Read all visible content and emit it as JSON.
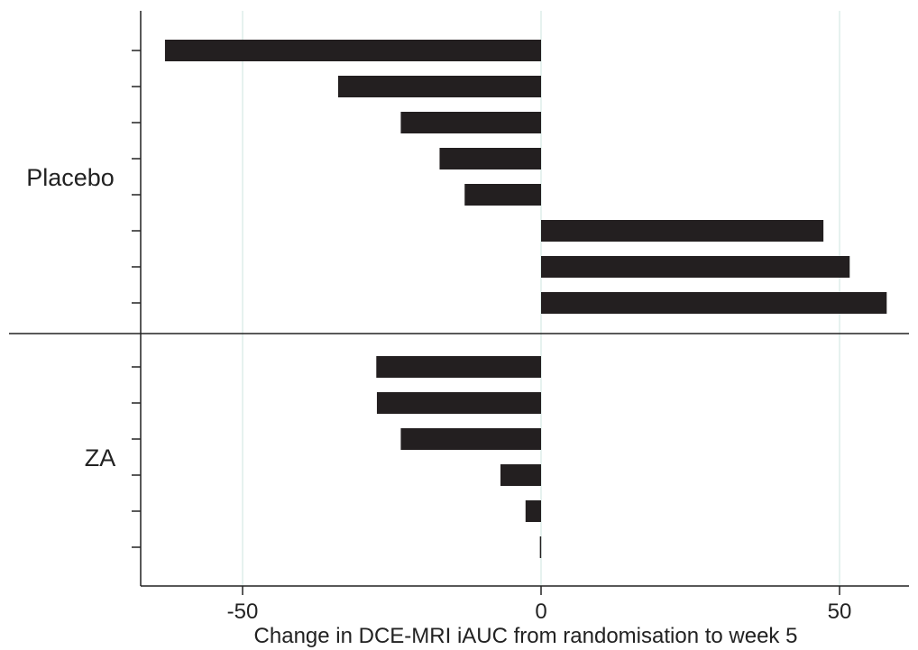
{
  "chart_data": {
    "type": "bar",
    "orientation": "horizontal",
    "title": "",
    "xlabel": "Change in DCE-MRI iAUC from randomisation to week 5",
    "ylabel": "",
    "xlim": [
      -67,
      62
    ],
    "xticks": [
      -50,
      0,
      50
    ],
    "xtick_labels": [
      "-50",
      "0",
      "50"
    ],
    "grid": "vertical lines at x ticks",
    "bar_color": "#231f20",
    "grid_color": "#ddeeea",
    "groups": [
      {
        "name": "Placebo",
        "values": [
          -63,
          -34,
          -23.5,
          -17,
          -12.8,
          47.3,
          51.7,
          57.9
        ]
      },
      {
        "name": "ZA",
        "values": [
          -27.6,
          -27.5,
          -23.5,
          -6.8,
          -2.6,
          -0.2
        ]
      }
    ]
  }
}
